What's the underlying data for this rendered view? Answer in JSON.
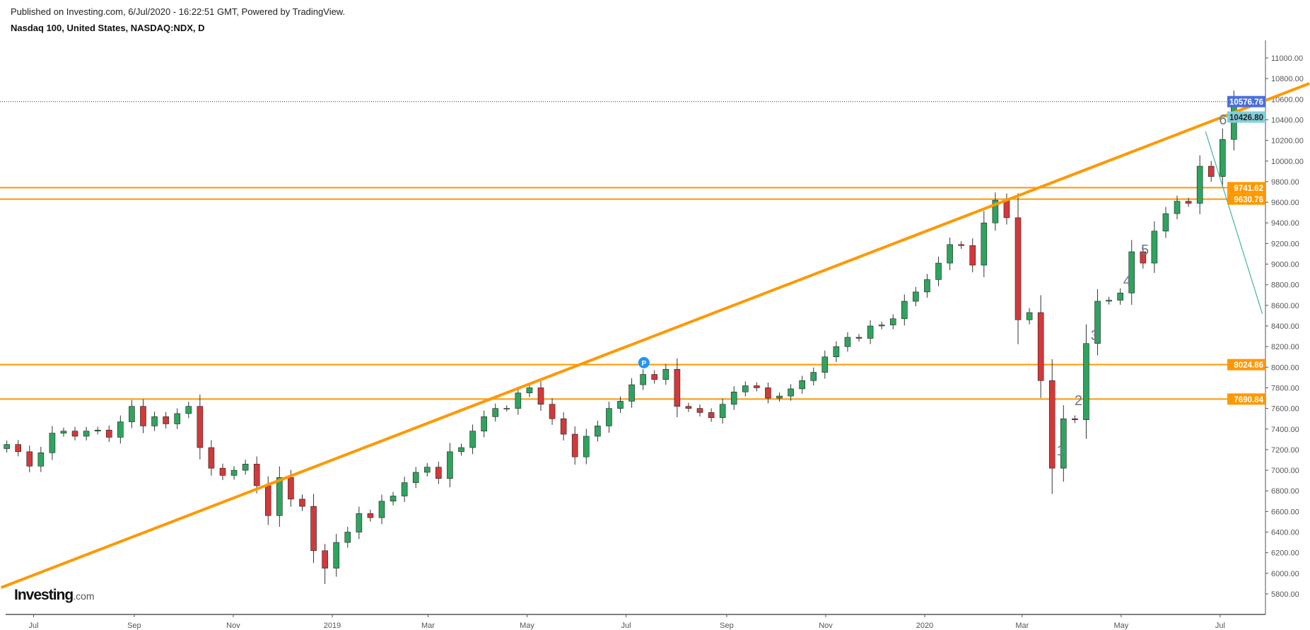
{
  "header": {
    "published": "Published on Investing.com, 6/Jul/2020 - 16:22:51 GMT, Powered by TradingView.",
    "symbol": "Nasdaq 100, United States, NASDAQ:NDX, D"
  },
  "logo": {
    "main": "Investing",
    "suffix": ".com"
  },
  "chart_data": {
    "type": "candlestick",
    "title": "Nasdaq 100, United States, NASDAQ:NDX, D",
    "xlabel": "",
    "ylabel": "",
    "ylim": [
      5600,
      11170
    ],
    "y_ticks": [
      5800,
      6000,
      6200,
      6400,
      6600,
      6800,
      7000,
      7200,
      7400,
      7600,
      7800,
      8000,
      8200,
      8400,
      8600,
      8800,
      9000,
      9200,
      9400,
      9600,
      9800,
      10000,
      10200,
      10400,
      10600,
      10800,
      11000
    ],
    "x_ticks": [
      {
        "date": "2018-07-01",
        "label": "Jul"
      },
      {
        "date": "2018-09-01",
        "label": "Sep"
      },
      {
        "date": "2018-11-01",
        "label": "Nov"
      },
      {
        "date": "2019-01-01",
        "label": "2019"
      },
      {
        "date": "2019-03-01",
        "label": "Mar"
      },
      {
        "date": "2019-05-01",
        "label": "May"
      },
      {
        "date": "2019-07-01",
        "label": "Jul"
      },
      {
        "date": "2019-09-01",
        "label": "Sep"
      },
      {
        "date": "2019-11-01",
        "label": "Nov"
      },
      {
        "date": "2020-01-01",
        "label": "2020"
      },
      {
        "date": "2020-03-01",
        "label": "Mar"
      },
      {
        "date": "2020-05-01",
        "label": "May"
      },
      {
        "date": "2020-07-01",
        "label": "Jul"
      }
    ],
    "series_weekly_close": [
      [
        "2018-06-11",
        7250
      ],
      [
        "2018-06-18",
        7180
      ],
      [
        "2018-06-25",
        7040
      ],
      [
        "2018-07-02",
        7170
      ],
      [
        "2018-07-09",
        7360
      ],
      [
        "2018-07-16",
        7380
      ],
      [
        "2018-07-23",
        7330
      ],
      [
        "2018-07-30",
        7380
      ],
      [
        "2018-08-06",
        7390
      ],
      [
        "2018-08-13",
        7320
      ],
      [
        "2018-08-20",
        7470
      ],
      [
        "2018-08-27",
        7620
      ],
      [
        "2018-09-03",
        7430
      ],
      [
        "2018-09-10",
        7520
      ],
      [
        "2018-09-17",
        7450
      ],
      [
        "2018-09-24",
        7550
      ],
      [
        "2018-10-01",
        7620
      ],
      [
        "2018-10-08",
        7220
      ],
      [
        "2018-10-15",
        7020
      ],
      [
        "2018-10-22",
        6950
      ],
      [
        "2018-10-29",
        7000
      ],
      [
        "2018-11-05",
        7060
      ],
      [
        "2018-11-12",
        6850
      ],
      [
        "2018-11-19",
        6560
      ],
      [
        "2018-11-26",
        6930
      ],
      [
        "2018-12-03",
        6720
      ],
      [
        "2018-12-10",
        6650
      ],
      [
        "2018-12-17",
        6220
      ],
      [
        "2018-12-24",
        6050
      ],
      [
        "2018-12-31",
        6300
      ],
      [
        "2019-01-07",
        6400
      ],
      [
        "2019-01-14",
        6580
      ],
      [
        "2019-01-21",
        6540
      ],
      [
        "2019-01-28",
        6700
      ],
      [
        "2019-02-04",
        6750
      ],
      [
        "2019-02-11",
        6880
      ],
      [
        "2019-02-18",
        6980
      ],
      [
        "2019-02-25",
        7030
      ],
      [
        "2019-03-04",
        6920
      ],
      [
        "2019-03-11",
        7180
      ],
      [
        "2019-03-18",
        7220
      ],
      [
        "2019-03-25",
        7380
      ],
      [
        "2019-04-01",
        7520
      ],
      [
        "2019-04-08",
        7600
      ],
      [
        "2019-04-15",
        7600
      ],
      [
        "2019-04-22",
        7750
      ],
      [
        "2019-04-29",
        7800
      ],
      [
        "2019-05-06",
        7640
      ],
      [
        "2019-05-13",
        7500
      ],
      [
        "2019-05-20",
        7350
      ],
      [
        "2019-05-27",
        7130
      ],
      [
        "2019-06-03",
        7330
      ],
      [
        "2019-06-10",
        7430
      ],
      [
        "2019-06-17",
        7600
      ],
      [
        "2019-06-24",
        7670
      ],
      [
        "2019-07-01",
        7830
      ],
      [
        "2019-07-08",
        7930
      ],
      [
        "2019-07-15",
        7880
      ],
      [
        "2019-07-22",
        7980
      ],
      [
        "2019-07-29",
        7620
      ],
      [
        "2019-08-05",
        7600
      ],
      [
        "2019-08-12",
        7560
      ],
      [
        "2019-08-19",
        7510
      ],
      [
        "2019-08-26",
        7640
      ],
      [
        "2019-09-02",
        7760
      ],
      [
        "2019-09-09",
        7820
      ],
      [
        "2019-09-16",
        7800
      ],
      [
        "2019-09-23",
        7700
      ],
      [
        "2019-09-30",
        7720
      ],
      [
        "2019-10-07",
        7790
      ],
      [
        "2019-10-14",
        7870
      ],
      [
        "2019-10-21",
        7950
      ],
      [
        "2019-10-28",
        8100
      ],
      [
        "2019-11-04",
        8200
      ],
      [
        "2019-11-11",
        8290
      ],
      [
        "2019-11-18",
        8280
      ],
      [
        "2019-11-25",
        8400
      ],
      [
        "2019-12-02",
        8410
      ],
      [
        "2019-12-09",
        8470
      ],
      [
        "2019-12-16",
        8640
      ],
      [
        "2019-12-23",
        8730
      ],
      [
        "2019-12-30",
        8850
      ],
      [
        "2020-01-06",
        9010
      ],
      [
        "2020-01-13",
        9190
      ],
      [
        "2020-01-20",
        9180
      ],
      [
        "2020-01-27",
        8990
      ],
      [
        "2020-02-03",
        9400
      ],
      [
        "2020-02-10",
        9620
      ],
      [
        "2020-02-17",
        9450
      ],
      [
        "2020-02-24",
        8460
      ],
      [
        "2020-03-02",
        8530
      ],
      [
        "2020-03-09",
        7870
      ],
      [
        "2020-03-16",
        7020
      ],
      [
        "2020-03-23",
        7500
      ],
      [
        "2020-03-30",
        7490
      ],
      [
        "2020-04-06",
        8230
      ],
      [
        "2020-04-13",
        8640
      ],
      [
        "2020-04-20",
        8650
      ],
      [
        "2020-04-27",
        8720
      ],
      [
        "2020-05-04",
        9120
      ],
      [
        "2020-05-11",
        9010
      ],
      [
        "2020-05-18",
        9320
      ],
      [
        "2020-05-25",
        9490
      ],
      [
        "2020-06-01",
        9610
      ],
      [
        "2020-06-08",
        9590
      ],
      [
        "2020-06-15",
        9950
      ],
      [
        "2020-06-22",
        9850
      ],
      [
        "2020-06-29",
        10210
      ],
      [
        "2020-07-06",
        10577
      ]
    ],
    "horizontal_levels": [
      {
        "price": 9741.62,
        "label": "9741.62",
        "color": "#ff9800"
      },
      {
        "price": 9630.76,
        "label": "9630.76",
        "color": "#ff9800"
      },
      {
        "price": 8024.86,
        "label": "8024.86",
        "color": "#ff9800"
      },
      {
        "price": 7690.84,
        "label": "7690.84",
        "color": "#ff9800"
      }
    ],
    "trendline": {
      "start": [
        "2018-06-11",
        5862
      ],
      "end": [
        "2020-08-25",
        10753
      ],
      "color": "#ff9800"
    },
    "teal_line": {
      "start": [
        "2020-06-22",
        10287
      ],
      "end": [
        "2020-07-27",
        8517
      ],
      "color": "#4fb9a8"
    },
    "last_price": {
      "price": 10576.76,
      "label": "10576.76",
      "color": "#4a6fe0"
    },
    "marker_level": {
      "price": 10426.8,
      "label": "10426.80",
      "from": "2020-06-30",
      "color": "#82cfdc"
    },
    "pivot_marker": {
      "date": "2019-07-12",
      "price": 8044,
      "label": "P",
      "color": "#2196f3"
    },
    "wave_labels": [
      {
        "text": "1",
        "date": "2020-03-28",
        "price": 7200
      },
      {
        "text": "2",
        "date": "2020-04-08",
        "price": 7687
      },
      {
        "text": "3",
        "date": "2020-04-18",
        "price": 8318
      },
      {
        "text": "4",
        "date": "2020-05-08",
        "price": 8846
      },
      {
        "text": "5",
        "date": "2020-05-19",
        "price": 9148
      },
      {
        "text": "6",
        "date": "2020-07-06",
        "price": 10410
      }
    ],
    "colors": {
      "up": "#2ea45e",
      "down": "#d2393a",
      "wick": "#333333",
      "axis": "#555555"
    }
  }
}
